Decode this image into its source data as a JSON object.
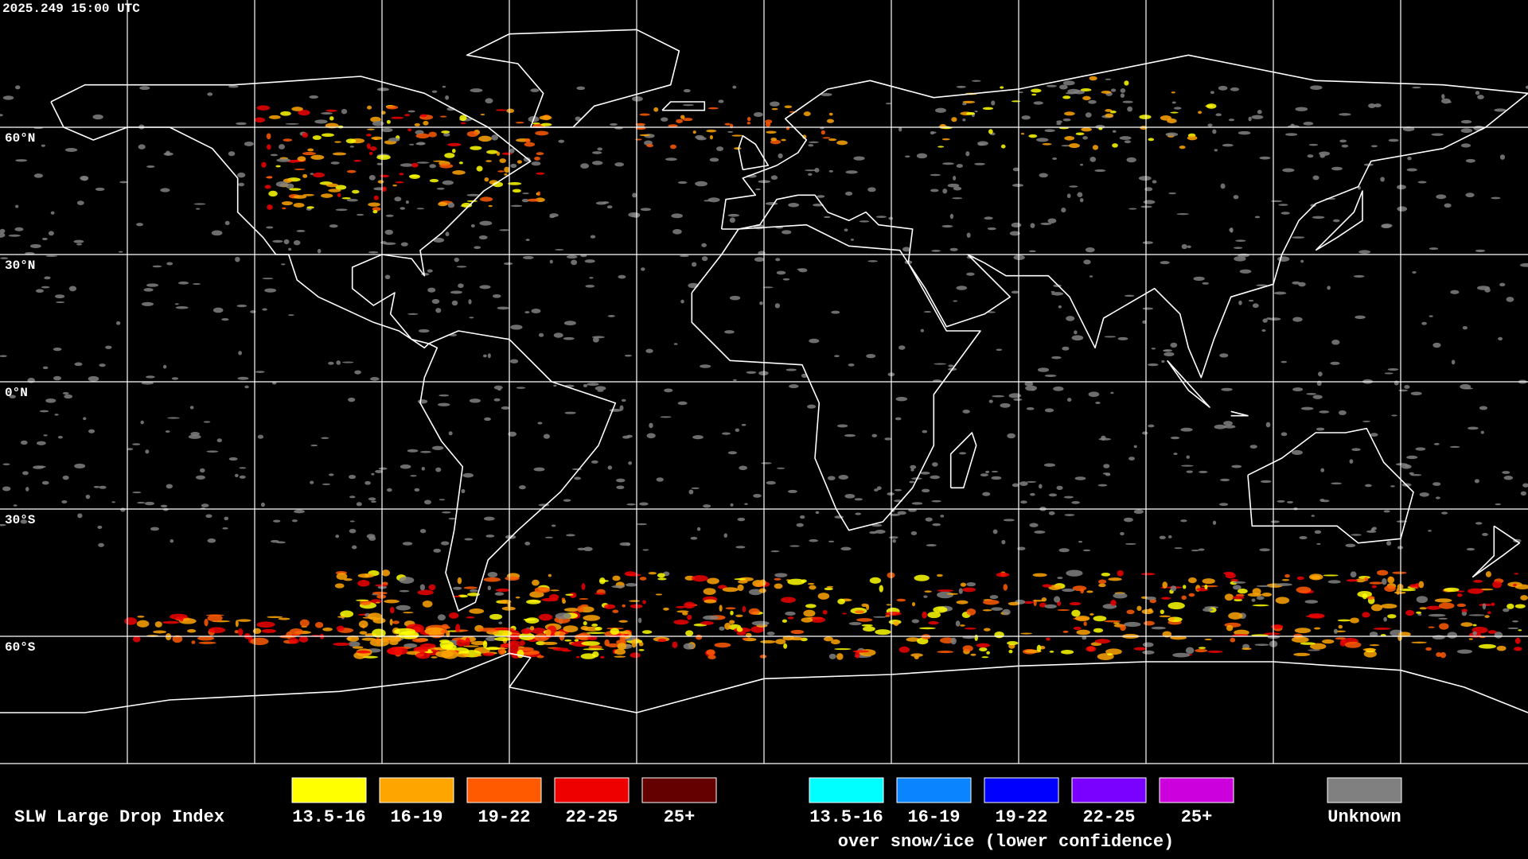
{
  "header": {
    "timestamp": "2025.249 15:00 UTC"
  },
  "map": {
    "latitude_labels": [
      "60°N",
      "30°N",
      "0°N",
      "30°S",
      "60°S"
    ]
  },
  "legend": {
    "title": "SLW Large Drop Index",
    "items": [
      {
        "label": "13.5-16",
        "color": "#ffff00"
      },
      {
        "label": "16-19",
        "color": "#ffa500"
      },
      {
        "label": "19-22",
        "color": "#ff5a00"
      },
      {
        "label": "22-25",
        "color": "#ee0000"
      },
      {
        "label": "25+",
        "color": "#640000"
      }
    ],
    "snow_items": [
      {
        "label": "13.5-16",
        "color": "#00ffff"
      },
      {
        "label": "16-19",
        "color": "#0a84ff"
      },
      {
        "label": "19-22",
        "color": "#0000ff"
      },
      {
        "label": "22-25",
        "color": "#7a00ff"
      },
      {
        "label": "25+",
        "color": "#cc00dd"
      }
    ],
    "snow_caption": "over snow/ice (lower confidence)",
    "unknown": {
      "label": "Unknown",
      "color": "#808080"
    }
  }
}
